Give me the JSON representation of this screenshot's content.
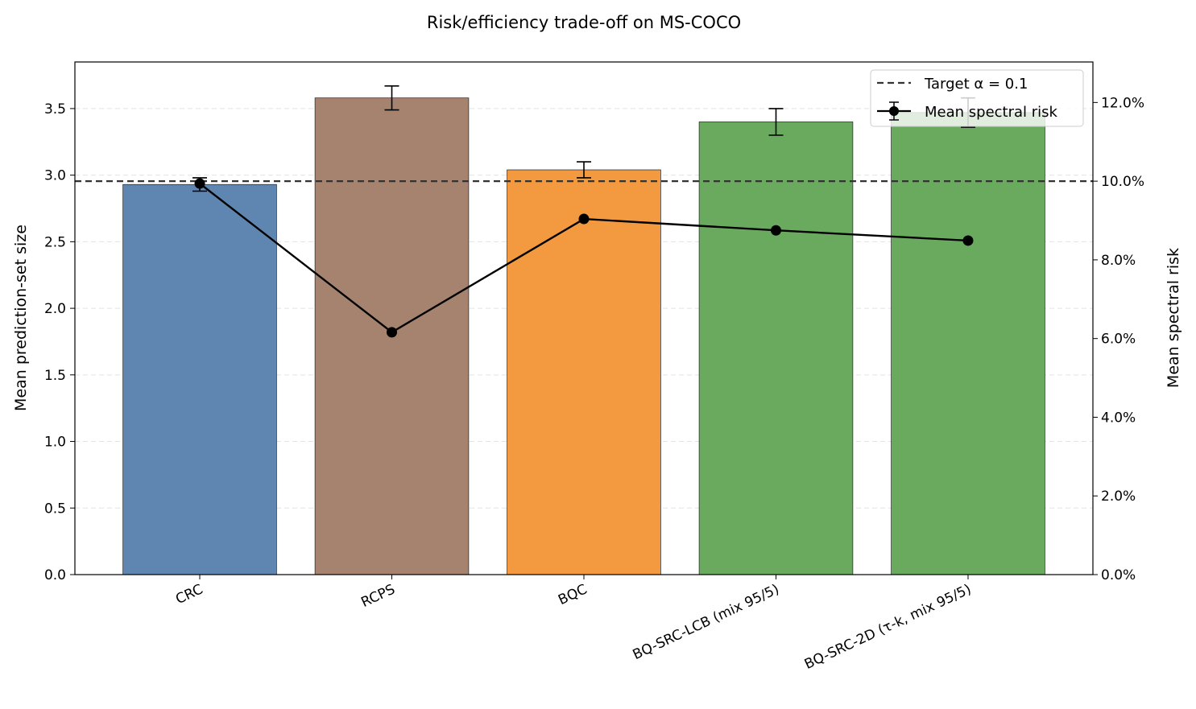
{
  "chart_data": {
    "type": "bar",
    "title": "Risk/efficiency trade-off on MS-COCO",
    "xlabel": "",
    "ylabel": "Mean prediction-set size",
    "y2label": "Mean spectral risk",
    "categories": [
      "CRC",
      "RCPS",
      "BQC",
      "BQ-SRC-LCB (mix 95/5)",
      "BQ-SRC-2D (τ-k, mix 95/5)"
    ],
    "bar_values": [
      2.93,
      3.58,
      3.04,
      3.4,
      3.47
    ],
    "bar_errors": [
      0.05,
      0.09,
      0.06,
      0.1,
      0.11
    ],
    "bar_colors": [
      "#5f86b0",
      "#a6836f",
      "#f39a40",
      "#6aaa5f",
      "#6aaa5f"
    ],
    "risk_series": {
      "name": "Mean spectral risk",
      "values": [
        9.94,
        6.16,
        9.04,
        8.75,
        8.49
      ],
      "unit": "%",
      "color": "#000000"
    },
    "target_line": {
      "name": "Target α = 0.1",
      "value": 10.0,
      "axis": "right"
    },
    "ylim": [
      0,
      3.85
    ],
    "y2lim": [
      0,
      13.03
    ],
    "yticks": [
      "0.0",
      "0.5",
      "1.0",
      "1.5",
      "2.0",
      "2.5",
      "3.0",
      "3.5"
    ],
    "y2ticks": [
      "0.0%",
      "2.0%",
      "4.0%",
      "6.0%",
      "8.0%",
      "10.0%",
      "12.0%"
    ],
    "grid": "horizontal dashed",
    "legend_placement": "top-right"
  }
}
